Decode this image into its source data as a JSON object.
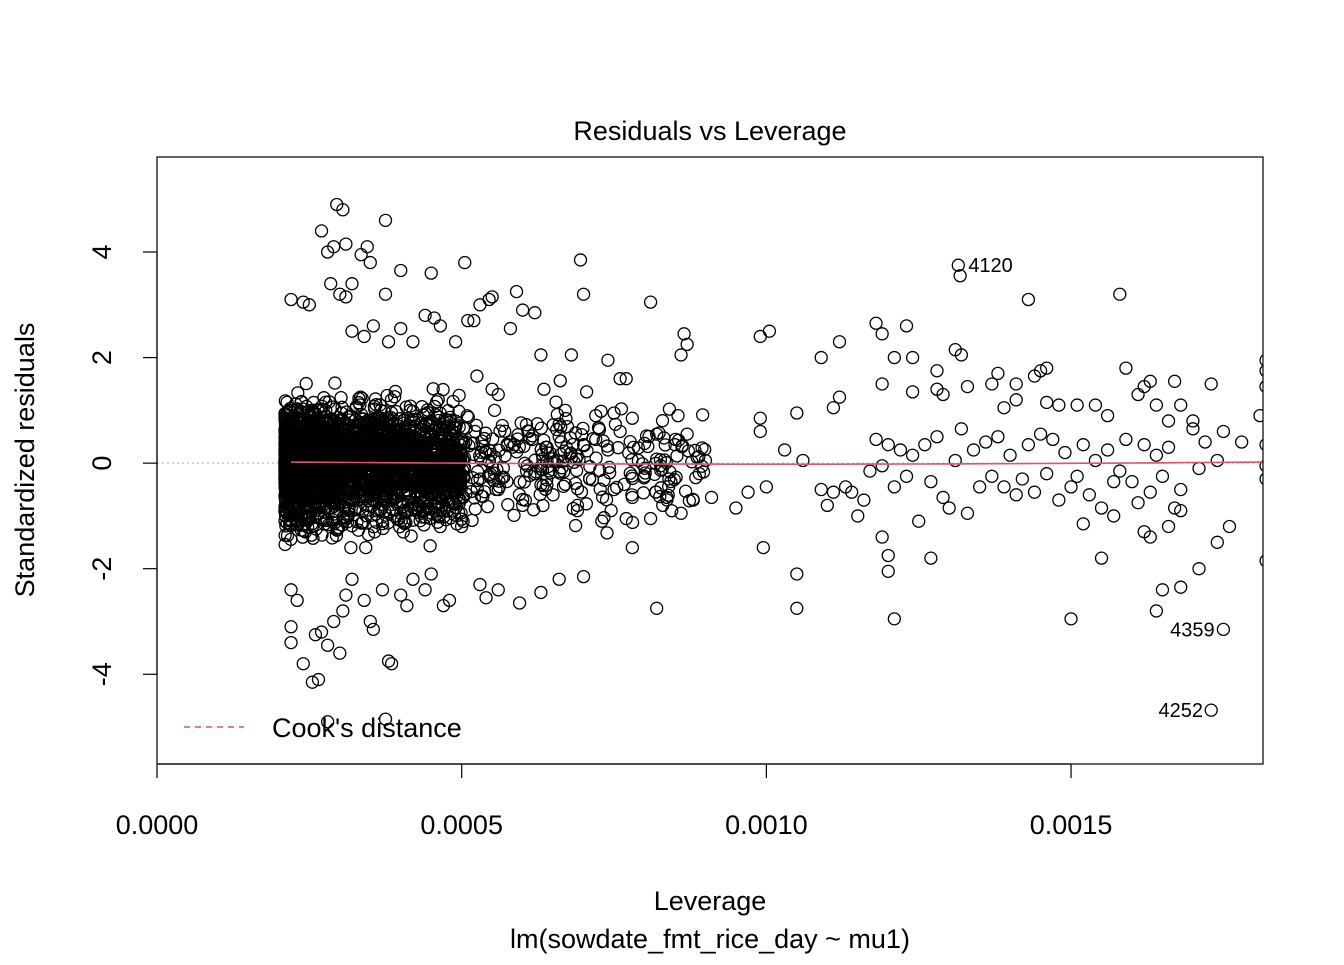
{
  "chart_data": {
    "type": "scatter",
    "title": "Residuals vs Leverage",
    "xlabel": "Leverage",
    "subtitle": "lm(sowdate_fmt_rice_day ~ mu1)",
    "ylabel": "Standardized residuals",
    "xlim": [
      0,
      0.001815
    ],
    "ylim": [
      -5.7,
      5.8
    ],
    "x_ticks": [
      {
        "value": 0.0,
        "label": "0.0000"
      },
      {
        "value": 0.0005,
        "label": "0.0005"
      },
      {
        "value": 0.001,
        "label": "0.0010"
      },
      {
        "value": 0.0015,
        "label": "0.0015"
      }
    ],
    "y_ticks": [
      {
        "value": -4,
        "label": "-4"
      },
      {
        "value": -2,
        "label": "-2"
      },
      {
        "value": 0,
        "label": "0"
      },
      {
        "value": 2,
        "label": "2"
      },
      {
        "value": 4,
        "label": "4"
      }
    ],
    "legend": {
      "label": "Cook's distance",
      "position": "bottom-left",
      "color": "#DF536B",
      "style": "dashed"
    },
    "smooth_color": "#DF536B",
    "zero_line_color": "#BEBEBE",
    "dense_region": {
      "x_range": [
        0.00021,
        0.0005
      ],
      "y_range": [
        -1.6,
        1.9
      ]
    },
    "labeled_points": [
      {
        "label": "4120",
        "x": 0.001315,
        "y": 3.75
      },
      {
        "label": "4359",
        "x": 0.001752,
        "y": -3.15
      },
      {
        "label": "4252",
        "x": 0.001733,
        "y": -4.68
      }
    ],
    "points": [
      [
        0.000295,
        4.9
      ],
      [
        0.000305,
        4.8
      ],
      [
        0.000375,
        4.6
      ],
      [
        0.00027,
        4.4
      ],
      [
        0.00029,
        4.1
      ],
      [
        0.00031,
        4.15
      ],
      [
        0.000345,
        4.1
      ],
      [
        0.00028,
        4.0
      ],
      [
        0.000335,
        3.95
      ],
      [
        0.00035,
        3.8
      ],
      [
        0.000285,
        3.4
      ],
      [
        0.00032,
        3.4
      ],
      [
        0.00025,
        3.0
      ],
      [
        0.00022,
        3.1
      ],
      [
        0.00024,
        3.05
      ],
      [
        0.0003,
        3.2
      ],
      [
        0.00031,
        3.15
      ],
      [
        0.000375,
        3.2
      ],
      [
        0.0004,
        3.65
      ],
      [
        0.00045,
        3.6
      ],
      [
        0.000505,
        3.8
      ],
      [
        0.00051,
        2.7
      ],
      [
        0.00053,
        3.0
      ],
      [
        0.000545,
        3.1
      ],
      [
        0.00055,
        3.15
      ],
      [
        0.00059,
        3.25
      ],
      [
        0.0006,
        2.9
      ],
      [
        0.00062,
        2.85
      ],
      [
        0.000695,
        3.85
      ],
      [
        0.0007,
        3.2
      ],
      [
        0.00081,
        3.05
      ],
      [
        0.00032,
        2.5
      ],
      [
        0.00034,
        2.4
      ],
      [
        0.000355,
        2.6
      ],
      [
        0.00038,
        2.3
      ],
      [
        0.0004,
        2.55
      ],
      [
        0.00042,
        2.3
      ],
      [
        0.00044,
        2.8
      ],
      [
        0.000455,
        2.75
      ],
      [
        0.000465,
        2.6
      ],
      [
        0.00049,
        2.3
      ],
      [
        0.00052,
        2.7
      ],
      [
        0.00058,
        2.55
      ],
      [
        0.00063,
        2.05
      ],
      [
        0.00068,
        2.05
      ],
      [
        0.00074,
        1.95
      ],
      [
        0.00076,
        1.6
      ],
      [
        0.00077,
        1.6
      ],
      [
        0.00086,
        2.05
      ],
      [
        0.00087,
        2.25
      ],
      [
        0.000865,
        2.45
      ],
      [
        0.00099,
        2.4
      ],
      [
        0.001005,
        2.5
      ],
      [
        0.00109,
        2.0
      ],
      [
        0.00112,
        2.3
      ],
      [
        0.00118,
        2.65
      ],
      [
        0.00119,
        2.45
      ],
      [
        0.00121,
        2.0
      ],
      [
        0.00123,
        2.6
      ],
      [
        0.00124,
        2.0
      ],
      [
        0.00128,
        1.75
      ],
      [
        0.00131,
        2.15
      ],
      [
        0.001315,
        3.75
      ],
      [
        0.001318,
        3.55
      ],
      [
        0.00132,
        2.05
      ],
      [
        0.00141,
        1.5
      ],
      [
        0.00143,
        3.1
      ],
      [
        0.00144,
        1.65
      ],
      [
        0.00145,
        1.75
      ],
      [
        0.00146,
        1.8
      ],
      [
        0.00158,
        3.2
      ],
      [
        0.00159,
        1.8
      ],
      [
        0.00163,
        1.55
      ],
      [
        0.00167,
        1.55
      ],
      [
        0.00173,
        1.5
      ],
      [
        0.00182,
        1.95
      ],
      [
        0.00182,
        1.75
      ],
      [
        0.00182,
        1.45
      ],
      [
        0.000525,
        1.65
      ],
      [
        0.00055,
        1.4
      ],
      [
        0.00056,
        1.3
      ],
      [
        0.000635,
        1.4
      ],
      [
        0.00067,
        1.0
      ],
      [
        0.000705,
        1.35
      ],
      [
        0.00072,
        0.9
      ],
      [
        0.00075,
        0.95
      ],
      [
        0.00078,
        0.85
      ],
      [
        0.000855,
        0.9
      ],
      [
        0.00099,
        0.85
      ],
      [
        0.00105,
        0.95
      ],
      [
        0.00111,
        1.05
      ],
      [
        0.00112,
        1.25
      ],
      [
        0.00119,
        1.5
      ],
      [
        0.00124,
        1.35
      ],
      [
        0.00128,
        1.4
      ],
      [
        0.00129,
        1.3
      ],
      [
        0.00133,
        1.45
      ],
      [
        0.00137,
        1.5
      ],
      [
        0.00138,
        1.7
      ],
      [
        0.00139,
        1.05
      ],
      [
        0.00141,
        1.2
      ],
      [
        0.00146,
        1.15
      ],
      [
        0.00148,
        1.1
      ],
      [
        0.00151,
        1.1
      ],
      [
        0.00154,
        1.1
      ],
      [
        0.00156,
        0.9
      ],
      [
        0.00161,
        1.3
      ],
      [
        0.00162,
        1.45
      ],
      [
        0.00164,
        1.1
      ],
      [
        0.00166,
        0.8
      ],
      [
        0.00168,
        1.1
      ],
      [
        0.0017,
        0.8
      ],
      [
        0.00175,
        0.6
      ],
      [
        0.00178,
        0.4
      ],
      [
        0.00181,
        0.9
      ],
      [
        0.00053,
        -0.3
      ],
      [
        0.00054,
        0.2
      ],
      [
        0.00056,
        -0.5
      ],
      [
        0.00058,
        0.4
      ],
      [
        0.0006,
        -0.8
      ],
      [
        0.00061,
        0.6
      ],
      [
        0.00062,
        -0.2
      ],
      [
        0.00064,
        0.3
      ],
      [
        0.00065,
        -0.6
      ],
      [
        0.00066,
        0.5
      ],
      [
        0.00067,
        -0.4
      ],
      [
        0.00068,
        0.1
      ],
      [
        0.00069,
        -0.9
      ],
      [
        0.0007,
        0.35
      ],
      [
        0.00071,
        -0.3
      ],
      [
        0.00072,
        0.45
      ],
      [
        0.00073,
        -1.1
      ],
      [
        0.00074,
        0.25
      ],
      [
        0.00075,
        -0.5
      ],
      [
        0.00076,
        0.6
      ],
      [
        0.00077,
        -1.05
      ],
      [
        0.00078,
        -0.65
      ],
      [
        0.00079,
        0.05
      ],
      [
        0.0008,
        -0.25
      ],
      [
        0.00081,
        -1.05
      ],
      [
        0.00082,
        0.55
      ],
      [
        0.00083,
        -0.8
      ],
      [
        0.00084,
        -0.3
      ],
      [
        0.00085,
        0.35
      ],
      [
        0.00086,
        -0.95
      ],
      [
        0.00087,
        0.55
      ],
      [
        0.00088,
        -0.7
      ],
      [
        0.00089,
        -0.2
      ],
      [
        0.0009,
        0.05
      ],
      [
        0.00091,
        -0.65
      ],
      [
        0.00095,
        -0.85
      ],
      [
        0.00097,
        -0.55
      ],
      [
        0.00099,
        0.6
      ],
      [
        0.001,
        -0.45
      ],
      [
        0.00103,
        0.25
      ],
      [
        0.00106,
        0.05
      ],
      [
        0.00109,
        -0.5
      ],
      [
        0.0011,
        -0.8
      ],
      [
        0.00111,
        -0.55
      ],
      [
        0.00113,
        -0.45
      ],
      [
        0.00114,
        -0.55
      ],
      [
        0.00115,
        -1.0
      ],
      [
        0.00116,
        -0.7
      ],
      [
        0.00117,
        -0.15
      ],
      [
        0.00118,
        0.45
      ],
      [
        0.00119,
        -0.05
      ],
      [
        0.0012,
        0.35
      ],
      [
        0.00121,
        -0.45
      ],
      [
        0.00122,
        0.25
      ],
      [
        0.00123,
        -0.25
      ],
      [
        0.00124,
        0.15
      ],
      [
        0.00125,
        -1.1
      ],
      [
        0.00126,
        0.35
      ],
      [
        0.00127,
        -0.35
      ],
      [
        0.00128,
        0.5
      ],
      [
        0.00129,
        -0.65
      ],
      [
        0.0013,
        -0.85
      ],
      [
        0.00131,
        0.05
      ],
      [
        0.00132,
        0.65
      ],
      [
        0.00133,
        -0.95
      ],
      [
        0.00134,
        0.25
      ],
      [
        0.00135,
        -0.45
      ],
      [
        0.00136,
        0.4
      ],
      [
        0.00137,
        -0.25
      ],
      [
        0.00138,
        0.5
      ],
      [
        0.00139,
        -0.45
      ],
      [
        0.0014,
        0.15
      ],
      [
        0.00141,
        -0.6
      ],
      [
        0.00142,
        -0.3
      ],
      [
        0.00143,
        0.35
      ],
      [
        0.00144,
        -0.55
      ],
      [
        0.00145,
        0.55
      ],
      [
        0.00146,
        -0.2
      ],
      [
        0.00147,
        0.45
      ],
      [
        0.00148,
        -0.7
      ],
      [
        0.00149,
        0.2
      ],
      [
        0.0015,
        -0.45
      ],
      [
        0.00151,
        -0.25
      ],
      [
        0.00152,
        0.35
      ],
      [
        0.00153,
        -0.6
      ],
      [
        0.00154,
        0.05
      ],
      [
        0.00155,
        -0.85
      ],
      [
        0.00156,
        0.25
      ],
      [
        0.00157,
        -0.35
      ],
      [
        0.00158,
        -0.15
      ],
      [
        0.00159,
        0.45
      ],
      [
        0.0016,
        -0.35
      ],
      [
        0.00161,
        -0.75
      ],
      [
        0.00162,
        0.35
      ],
      [
        0.00163,
        -0.55
      ],
      [
        0.00164,
        0.15
      ],
      [
        0.00165,
        -0.25
      ],
      [
        0.00166,
        0.3
      ],
      [
        0.00167,
        -0.85
      ],
      [
        0.00168,
        -0.5
      ],
      [
        0.0017,
        0.65
      ],
      [
        0.00171,
        -0.1
      ],
      [
        0.00172,
        0.4
      ],
      [
        0.00174,
        0.05
      ],
      [
        0.00182,
        -0.3
      ],
      [
        0.00182,
        0.35
      ],
      [
        0.00182,
        -0.05
      ],
      [
        0.00022,
        -2.4
      ],
      [
        0.00023,
        -2.6
      ],
      [
        0.00022,
        -3.1
      ],
      [
        0.00024,
        -3.8
      ],
      [
        0.00022,
        -3.4
      ],
      [
        0.00026,
        -3.25
      ],
      [
        0.000255,
        -4.15
      ],
      [
        0.000265,
        -4.1
      ],
      [
        0.00027,
        -3.2
      ],
      [
        0.00028,
        -3.45
      ],
      [
        0.00029,
        -3.0
      ],
      [
        0.0003,
        -3.6
      ],
      [
        0.000305,
        -2.8
      ],
      [
        0.00031,
        -2.5
      ],
      [
        0.00032,
        -2.2
      ],
      [
        0.00034,
        -2.6
      ],
      [
        0.00035,
        -3.0
      ],
      [
        0.000355,
        -3.15
      ],
      [
        0.00037,
        -2.4
      ],
      [
        0.00038,
        -3.75
      ],
      [
        0.000385,
        -3.8
      ],
      [
        0.0004,
        -2.5
      ],
      [
        0.00041,
        -2.7
      ],
      [
        0.00042,
        -2.2
      ],
      [
        0.00044,
        -2.4
      ],
      [
        0.00045,
        -2.1
      ],
      [
        0.00047,
        -2.7
      ],
      [
        0.00048,
        -2.6
      ],
      [
        0.000375,
        -4.85
      ],
      [
        0.00028,
        -4.9
      ],
      [
        0.00053,
        -2.3
      ],
      [
        0.00054,
        -2.55
      ],
      [
        0.00056,
        -2.4
      ],
      [
        0.000595,
        -2.65
      ],
      [
        0.00063,
        -2.45
      ],
      [
        0.00066,
        -2.2
      ],
      [
        0.0007,
        -2.15
      ],
      [
        0.00078,
        -1.6
      ],
      [
        0.00082,
        -2.75
      ],
      [
        0.000995,
        -1.6
      ],
      [
        0.00105,
        -2.1
      ],
      [
        0.00105,
        -2.75
      ],
      [
        0.00119,
        -1.4
      ],
      [
        0.0012,
        -2.05
      ],
      [
        0.0012,
        -1.75
      ],
      [
        0.00121,
        -2.95
      ],
      [
        0.00127,
        -1.8
      ],
      [
        0.0015,
        -2.95
      ],
      [
        0.00155,
        -1.8
      ],
      [
        0.00162,
        -1.3
      ],
      [
        0.00164,
        -2.8
      ],
      [
        0.00165,
        -2.4
      ],
      [
        0.00168,
        -2.35
      ],
      [
        0.00171,
        -2.0
      ],
      [
        0.00175,
        -3.15
      ],
      [
        0.00173,
        -4.68
      ],
      [
        0.00174,
        -1.5
      ],
      [
        0.00176,
        -1.2
      ],
      [
        0.00182,
        -1.85
      ],
      [
        0.00163,
        -1.4
      ],
      [
        0.00166,
        -1.2
      ],
      [
        0.00168,
        -0.9
      ],
      [
        0.00157,
        -1.0
      ],
      [
        0.00152,
        -1.15
      ]
    ]
  }
}
